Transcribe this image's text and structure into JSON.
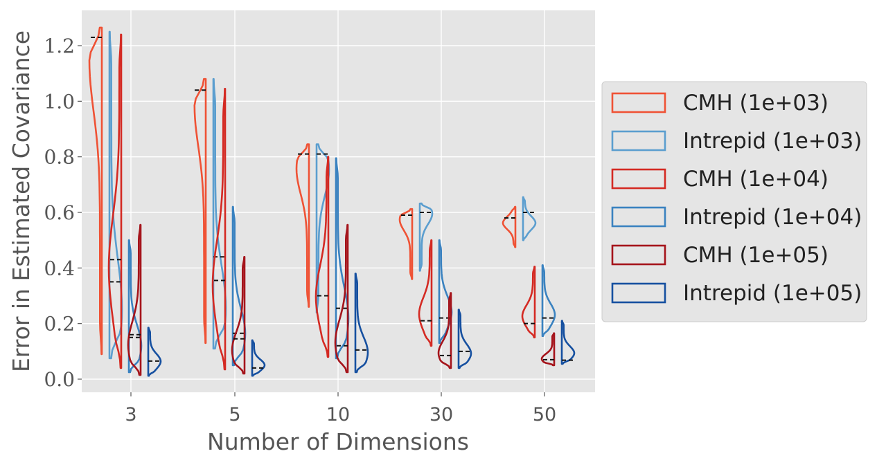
{
  "chart_data": {
    "type": "violin",
    "xlabel": "Number of Dimensions",
    "ylabel": "Error in Estimated Covariance",
    "categories": [
      "3",
      "5",
      "10",
      "30",
      "50"
    ],
    "ylim": [
      -0.05,
      1.33
    ],
    "yticks": [
      0.0,
      0.2,
      0.4,
      0.6,
      0.8,
      1.0,
      1.2
    ],
    "ytick_labels": [
      "0.0",
      "0.2",
      "0.4",
      "0.6",
      "0.8",
      "1.0",
      "1.2"
    ],
    "grid": true,
    "legend_position": "center-right outside",
    "series": [
      {
        "name": "CMH (1e+03)",
        "color": "#ef5235",
        "side": "left",
        "data": [
          {
            "min": 0.09,
            "max": 1.265,
            "mean": 1.23,
            "median": 1.23,
            "width": 1.0,
            "peak": 0.9
          },
          {
            "min": 0.13,
            "max": 1.08,
            "mean": 1.04,
            "median": 1.04,
            "width": 0.9,
            "peak": 0.9
          },
          {
            "min": 0.26,
            "max": 0.845,
            "mean": 0.81,
            "median": 0.81,
            "width": 1.0,
            "peak": 0.85
          },
          {
            "min": 0.36,
            "max": 0.612,
            "mean": 0.59,
            "median": 0.59,
            "width": 1.0,
            "peak": 0.85
          },
          {
            "min": 0.475,
            "max": 0.62,
            "mean": 0.58,
            "median": 0.58,
            "width": 1.0,
            "peak": 0.6
          }
        ]
      },
      {
        "name": "Intrepid (1e+03)",
        "color": "#5b9ecf",
        "side": "right",
        "data": [
          {
            "min": 0.075,
            "max": 1.25,
            "mean": 0.35,
            "median": 0.35,
            "width": 1.0,
            "peak": 0.15
          },
          {
            "min": 0.11,
            "max": 1.08,
            "mean": 0.44,
            "median": 0.44,
            "width": 1.0,
            "peak": 0.15
          },
          {
            "min": 0.24,
            "max": 0.845,
            "mean": 0.81,
            "median": 0.81,
            "width": 1.0,
            "peak": 0.85
          },
          {
            "min": 0.39,
            "max": 0.632,
            "mean": 0.6,
            "median": 0.6,
            "width": 1.0,
            "peak": 0.85
          },
          {
            "min": 0.5,
            "max": 0.655,
            "mean": 0.6,
            "median": 0.6,
            "width": 1.0,
            "peak": 0.4
          }
        ]
      },
      {
        "name": "CMH (1e+04)",
        "color": "#d42a23",
        "side": "left",
        "data": [
          {
            "min": 0.04,
            "max": 1.24,
            "mean": 0.43,
            "median": 0.43,
            "width": 1.0,
            "peak": 0.3
          },
          {
            "min": 0.035,
            "max": 1.045,
            "mean": 0.355,
            "median": 0.355,
            "width": 1.0,
            "peak": 0.3
          },
          {
            "min": 0.08,
            "max": 0.8,
            "mean": 0.3,
            "median": 0.3,
            "width": 1.0,
            "peak": 0.3
          },
          {
            "min": 0.12,
            "max": 0.5,
            "mean": 0.21,
            "median": 0.21,
            "width": 1.0,
            "peak": 0.3
          },
          {
            "min": 0.15,
            "max": 0.405,
            "mean": 0.2,
            "median": 0.2,
            "width": 1.0,
            "peak": 0.3
          }
        ]
      },
      {
        "name": "Intrepid (1e+04)",
        "color": "#3a82c0",
        "side": "right",
        "data": [
          {
            "min": 0.025,
            "max": 0.5,
            "mean": 0.15,
            "median": 0.15,
            "width": 1.0,
            "peak": 0.2
          },
          {
            "min": 0.05,
            "max": 0.62,
            "mean": 0.165,
            "median": 0.165,
            "width": 1.0,
            "peak": 0.2
          },
          {
            "min": 0.075,
            "max": 0.795,
            "mean": 0.255,
            "median": 0.255,
            "width": 1.0,
            "peak": 0.2
          },
          {
            "min": 0.13,
            "max": 0.5,
            "mean": 0.22,
            "median": 0.22,
            "width": 1.0,
            "peak": 0.3
          },
          {
            "min": 0.155,
            "max": 0.41,
            "mean": 0.22,
            "median": 0.22,
            "width": 1.0,
            "peak": 0.3
          }
        ]
      },
      {
        "name": "CMH (1e+05)",
        "color": "#a5141b",
        "side": "left",
        "data": [
          {
            "min": 0.015,
            "max": 0.555,
            "mean": 0.16,
            "median": 0.16,
            "width": 1.0,
            "peak": 0.2
          },
          {
            "min": 0.02,
            "max": 0.44,
            "mean": 0.145,
            "median": 0.145,
            "width": 1.0,
            "peak": 0.2
          },
          {
            "min": 0.025,
            "max": 0.555,
            "mean": 0.12,
            "median": 0.12,
            "width": 1.0,
            "peak": 0.2
          },
          {
            "min": 0.04,
            "max": 0.31,
            "mean": 0.085,
            "median": 0.085,
            "width": 1.0,
            "peak": 0.2
          },
          {
            "min": 0.05,
            "max": 0.165,
            "mean": 0.07,
            "median": 0.07,
            "width": 1.0,
            "peak": 0.2
          }
        ]
      },
      {
        "name": "Intrepid (1e+05)",
        "color": "#1650a0",
        "side": "right",
        "data": [
          {
            "min": 0.012,
            "max": 0.185,
            "mean": 0.065,
            "median": 0.065,
            "width": 1.0,
            "peak": 0.3
          },
          {
            "min": 0.012,
            "max": 0.14,
            "mean": 0.04,
            "median": 0.04,
            "width": 1.0,
            "peak": 0.3
          },
          {
            "min": 0.025,
            "max": 0.38,
            "mean": 0.105,
            "median": 0.105,
            "width": 1.0,
            "peak": 0.2
          },
          {
            "min": 0.04,
            "max": 0.25,
            "mean": 0.1,
            "median": 0.1,
            "width": 1.0,
            "peak": 0.25
          },
          {
            "min": 0.055,
            "max": 0.21,
            "mean": 0.068,
            "median": 0.068,
            "width": 1.0,
            "peak": 0.25
          }
        ]
      }
    ]
  }
}
